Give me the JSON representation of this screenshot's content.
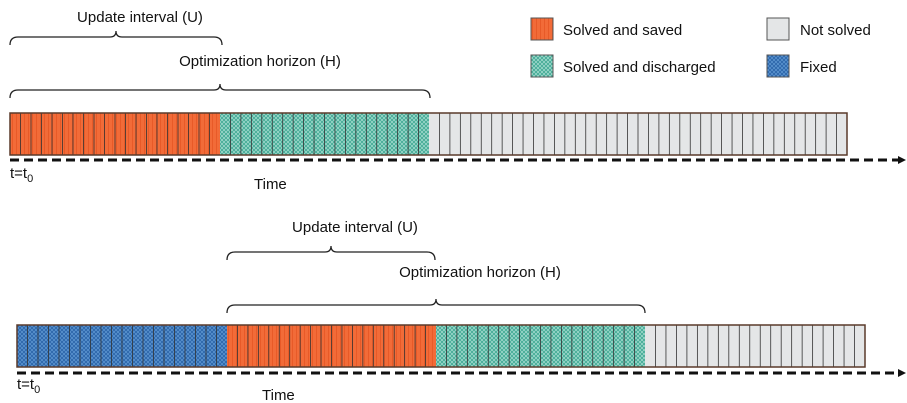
{
  "legend": [
    {
      "label": "Solved and saved"
    },
    {
      "label": "Solved and discharged"
    },
    {
      "label": "Not solved"
    },
    {
      "label": "Fixed"
    }
  ],
  "panels": [
    {
      "update_interval": "Update interval (U)",
      "optimization_horizon": "Optimization horizon (H)",
      "start": {
        "text": "t=t",
        "subscript": "0"
      },
      "axis_label": "Time"
    },
    {
      "update_interval": "Update interval (U)",
      "optimization_horizon": "Optimization horizon (H)",
      "start": {
        "text": "t=t",
        "subscript": "0"
      },
      "axis_label": "Time"
    }
  ]
}
